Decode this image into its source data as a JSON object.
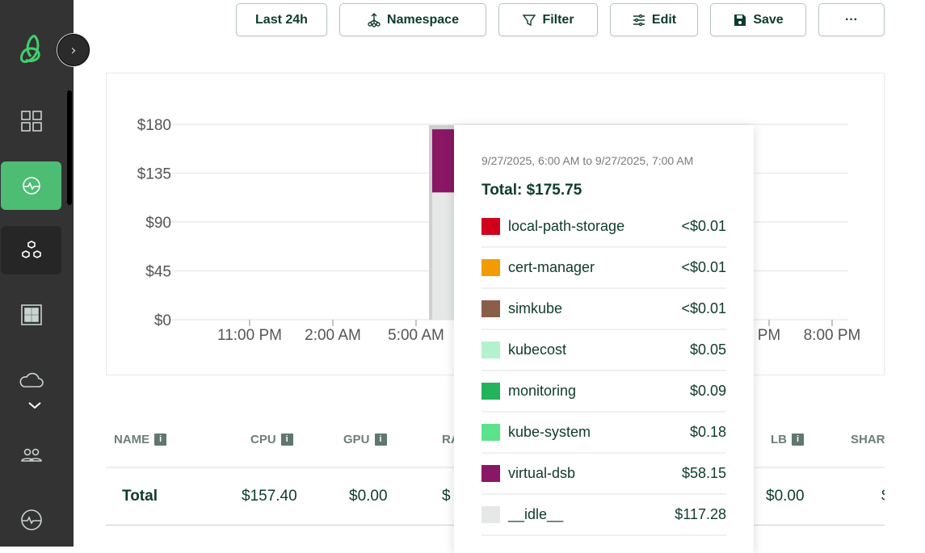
{
  "toolbar": {
    "last24": "Last 24h",
    "namespace": "Namespace",
    "filter": "Filter",
    "edit": "Edit",
    "save": "Save",
    "more": "···"
  },
  "sidebar": {
    "items": [
      {
        "icon": "grid-icon"
      },
      {
        "icon": "pulse-icon",
        "active": true
      },
      {
        "icon": "hexagons-icon"
      },
      {
        "icon": "dashboard-icon"
      },
      {
        "icon": "cloud-icon"
      },
      {
        "icon": "users-icon"
      },
      {
        "icon": "health-icon"
      }
    ],
    "expand": "›",
    "collapse": "⌄"
  },
  "chart_data": {
    "type": "bar",
    "stacked": true,
    "yticks": [
      "$0",
      "$45",
      "$90",
      "$135",
      "$180"
    ],
    "ylim": [
      0,
      180
    ],
    "xticks": [
      "11:00 PM",
      "2:00 AM",
      "5:00 AM",
      "PM",
      "8:00 PM"
    ],
    "grid": true,
    "series": [
      {
        "name": "__idle__",
        "value": 117.28,
        "color": "#e5e8e7"
      },
      {
        "name": "virtual-dsb",
        "value": 58.15,
        "color": "#8a1765"
      }
    ],
    "bar_period": "9/27/2025, 6:00 AM to 9/27/2025, 7:00 AM"
  },
  "tooltip": {
    "range": "9/27/2025, 6:00 AM to 9/27/2025, 7:00 AM",
    "total": "Total: $175.75",
    "rows": [
      {
        "name": "local-path-storage",
        "value": "<$0.01",
        "color": "#d0021b"
      },
      {
        "name": "cert-manager",
        "value": "<$0.01",
        "color": "#f29c00"
      },
      {
        "name": "simkube",
        "value": "<$0.01",
        "color": "#8b5e4a"
      },
      {
        "name": "kubecost",
        "value": "$0.05",
        "color": "#b3f2cc"
      },
      {
        "name": "monitoring",
        "value": "$0.09",
        "color": "#23b35a"
      },
      {
        "name": "kube-system",
        "value": "$0.18",
        "color": "#5be38c"
      },
      {
        "name": "virtual-dsb",
        "value": "$58.15",
        "color": "#8a1765"
      },
      {
        "name": "__idle__",
        "value": "$117.28",
        "color": "#e5e8e7"
      }
    ]
  },
  "table": {
    "headers": [
      "NAME",
      "CPU",
      "GPU",
      "RA",
      "LB",
      "SHAR"
    ],
    "total_row": [
      "Total",
      "$157.40",
      "$0.00",
      "$",
      "$0.00",
      "$"
    ]
  }
}
